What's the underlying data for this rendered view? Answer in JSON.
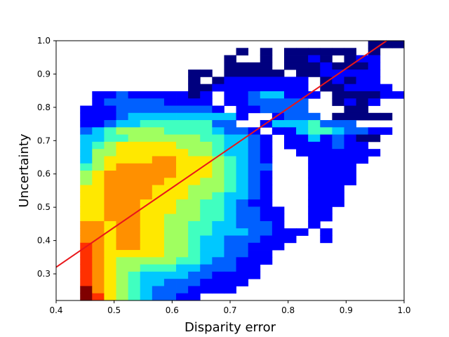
{
  "chart_data": {
    "type": "heatmap",
    "title": "",
    "xlabel": "Disparity error",
    "ylabel": "Uncertainty",
    "xlim": [
      0.4,
      1.0
    ],
    "ylim": [
      0.22,
      1.0
    ],
    "x_ticks": [
      "0.4",
      "0.5",
      "0.6",
      "0.7",
      "0.8",
      "0.9",
      "1.0"
    ],
    "y_ticks": [
      "0.3",
      "0.4",
      "0.5",
      "0.6",
      "0.7",
      "0.8",
      "0.9",
      "1.0"
    ],
    "grid": false,
    "legend": "none",
    "colormap": "jet",
    "bins": {
      "nx": 29,
      "ny": 36,
      "x_range": [
        0.4,
        1.0
      ],
      "y_range": [
        0.22,
        1.0
      ]
    },
    "density_rows_top_to_bottom": [
      "..........................000",
      "...............0.0.000000.0..",
      "..............0..0.0010.011..",
      "..............0000.00010001..",
      "...........00.00000.0011111..",
      "...........0.01111111.01011..",
      "...........0011111111.001111.",
      "...1121111101.11233111.000011",
      "...1222221111.1122222..0101..",
      "..111222222221.112222...00..",
      "..11123333333331..1222.00000.",
      "..1123344444422..13334222...",
      "..234555544443221.1134432211.",
      "..3344555555443321.11312100..",
      "..3456666655543321.1111211..",
      "..3556666665543321..1111111..",
      "..3566667766654321...11111...",
      "..4567777766654322...1111....",
      "..5677777766654321...1111....",
      "..5677777666554321...1111....",
      "..6677776665554321...111.....",
      "..6677776665543321...111.....",
      "..6677766655443211...111.....",
      "..66777666554432211..11......",
      "..66777665554432211..11......",
      "..77677665544332221..1.......",
      "..7767766554433322111.1......",
      "..776776655433222111..1......",
      "..87677665543322111..........",
      "..8766666554332211...........",
      "..8765555544322111...........",
      "..876554443322211............",
      "..876543333221111............",
      "..87654332221111.............",
      "..9765432221111..............",
      "..9865432211.................."
    ],
    "density_scale": [
      "0",
      "1",
      "2",
      "3",
      "4",
      "5",
      "6",
      "7",
      "8",
      "9"
    ],
    "fit_line": {
      "x": [
        0.4,
        0.97
      ],
      "y": [
        0.32,
        1.0
      ],
      "color": "#e8161a"
    }
  }
}
